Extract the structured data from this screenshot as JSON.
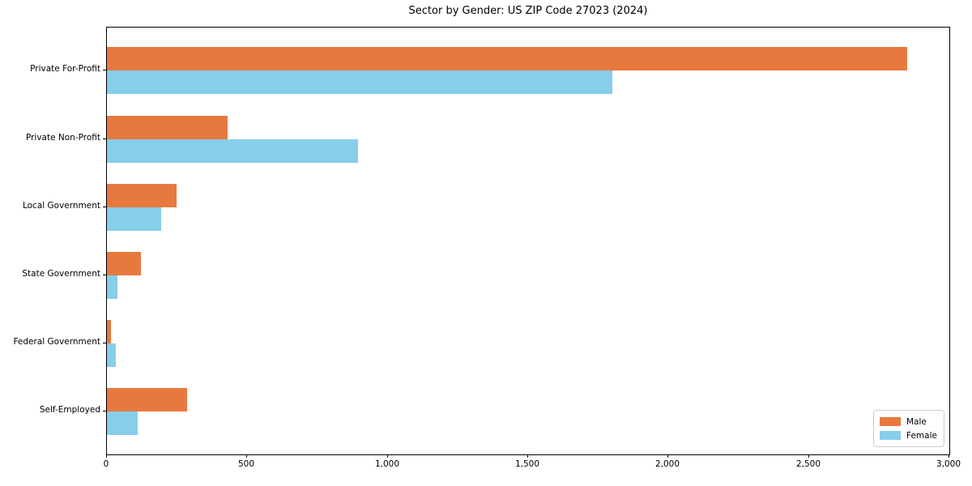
{
  "title": "Sector by Gender: US ZIP Code 27023 (2024)",
  "colors": {
    "male": "#e8793e",
    "female": "#87ceeb",
    "spine": "#000000",
    "background": "#ffffff",
    "legend_border": "#cccccc"
  },
  "legend": {
    "position": "lower right",
    "entries": [
      {
        "label": "Male",
        "color": "#e8793e"
      },
      {
        "label": "Female",
        "color": "#87ceeb"
      }
    ]
  },
  "chart_data": {
    "type": "bar",
    "orientation": "horizontal",
    "title": "Sector by Gender: US ZIP Code 27023 (2024)",
    "xlabel": "",
    "ylabel": "",
    "categories": [
      "Private For-Profit",
      "Private Non-Profit",
      "Local Government",
      "State Government",
      "Federal Government",
      "Self-Employed"
    ],
    "series": [
      {
        "name": "Male",
        "color": "#e8793e",
        "values": [
          2850,
          430,
          248,
          120,
          15,
          285
        ]
      },
      {
        "name": "Female",
        "color": "#87ceeb",
        "values": [
          1800,
          895,
          192,
          38,
          32,
          110
        ]
      }
    ],
    "xlim": [
      0,
      3000
    ],
    "x_ticks": [
      0,
      500,
      1000,
      1500,
      2000,
      2500,
      3000
    ],
    "x_tick_labels": [
      "0",
      "500",
      "1,000",
      "1,500",
      "2,000",
      "2,500",
      "3,000"
    ],
    "grid": false,
    "legend_position": "lower right"
  }
}
